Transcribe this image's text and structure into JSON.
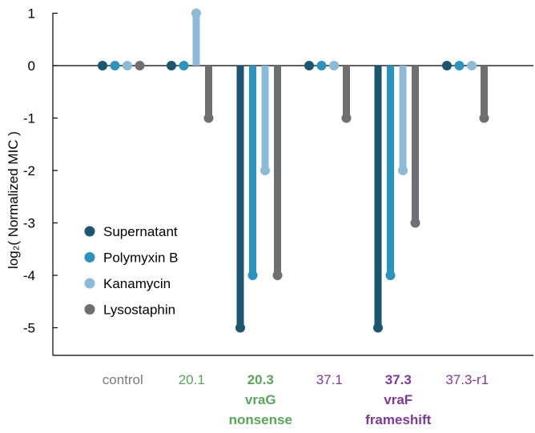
{
  "chart_data": {
    "type": "lollipop",
    "title": "",
    "xlabel": "",
    "ylabel": "log₂( Normalized MIC )",
    "ylim": [
      -5.5,
      1
    ],
    "yticks": [
      1,
      0,
      -1,
      -2,
      -3,
      -4,
      -5
    ],
    "grid": false,
    "legend_position": "lower-left",
    "categories": [
      {
        "label": "control",
        "sublabel": [],
        "color": "#7b7b7b",
        "bold": false
      },
      {
        "label": "20.1",
        "sublabel": [],
        "color": "#5aa55a",
        "bold": false
      },
      {
        "label": "20.3",
        "sublabel": [
          "vraG",
          "nonsense"
        ],
        "color": "#5aa55a",
        "bold": true
      },
      {
        "label": "37.1",
        "sublabel": [],
        "color": "#7e3a96",
        "bold": false
      },
      {
        "label": "37.3",
        "sublabel": [
          "vraF",
          "frameshift"
        ],
        "color": "#7e3a96",
        "bold": true
      },
      {
        "label": "37.3-r1",
        "sublabel": [],
        "color": "#7e3a96",
        "bold": false
      }
    ],
    "series": [
      {
        "name": "Supernatant",
        "color": "#1c5570",
        "values": [
          0,
          0,
          -5,
          0,
          -5,
          0
        ]
      },
      {
        "name": "Polymyxin B",
        "color": "#2a93be",
        "values": [
          0,
          0,
          -4,
          0,
          -4,
          0
        ]
      },
      {
        "name": "Kanamycin",
        "color": "#8cbbd8",
        "values": [
          0,
          1,
          -2,
          0,
          -2,
          0
        ]
      },
      {
        "name": "Lysostaphin",
        "color": "#6e6f73",
        "values": [
          0,
          -1,
          -4,
          -1,
          -3,
          -1
        ]
      }
    ]
  }
}
